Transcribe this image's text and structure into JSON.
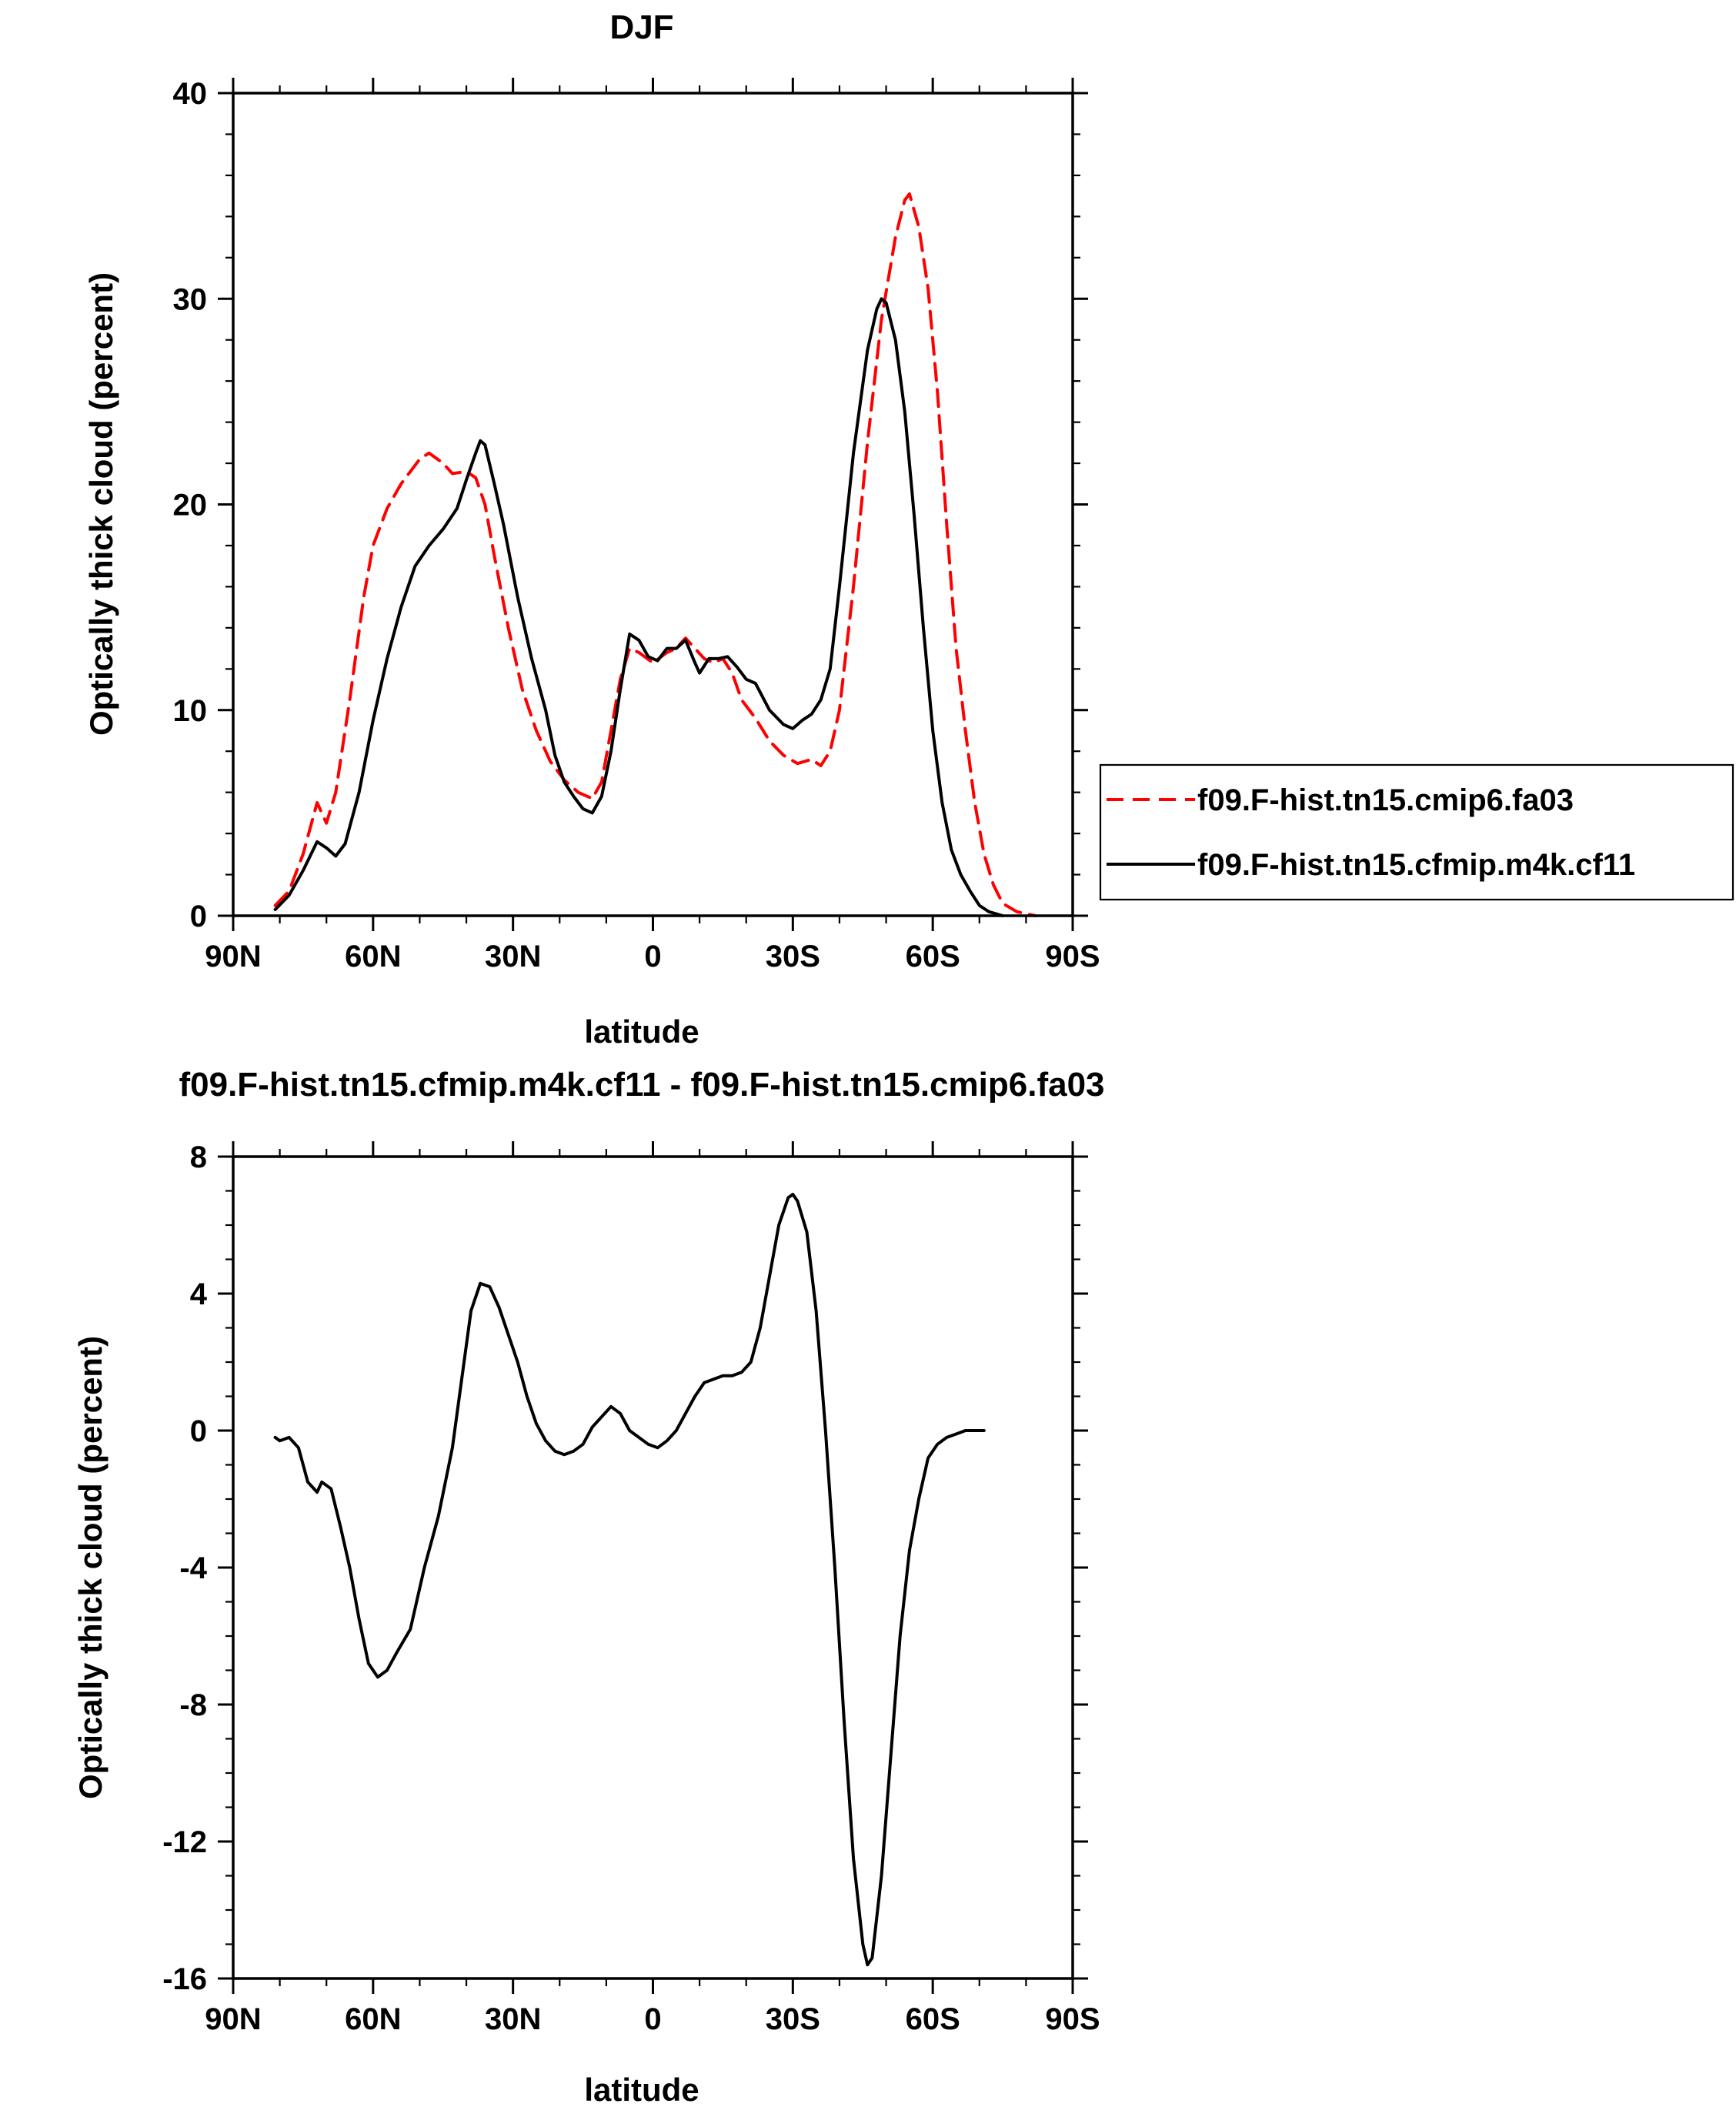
{
  "chart_data": [
    {
      "type": "line",
      "title": "DJF",
      "xlabel": "latitude",
      "ylabel": "Optically thick cloud (percent)",
      "xlim": [
        -90,
        90
      ],
      "ylim": [
        0,
        40
      ],
      "x_tick_values": [
        -90,
        -60,
        -30,
        0,
        30,
        60,
        90
      ],
      "x_tick_labels": [
        "90N",
        "60N",
        "30N",
        "0",
        "30S",
        "60S",
        "90S"
      ],
      "y_tick_values": [
        0,
        10,
        20,
        30,
        40
      ],
      "y_tick_labels": [
        "0",
        "10",
        "20",
        "30",
        "40"
      ],
      "legend_position": "right",
      "series": [
        {
          "name": "f09.F-hist.tn15.cmip6.fa03",
          "color": "#ff0000",
          "style": "dashed",
          "points": [
            [
              -81,
              0.5
            ],
            [
              -78,
              1.2
            ],
            [
              -75,
              3.0
            ],
            [
              -72,
              5.5
            ],
            [
              -70,
              4.5
            ],
            [
              -68,
              6.0
            ],
            [
              -65,
              10.5
            ],
            [
              -62,
              15.5
            ],
            [
              -60,
              18.0
            ],
            [
              -57,
              19.8
            ],
            [
              -54,
              21.0
            ],
            [
              -50,
              22.2
            ],
            [
              -48,
              22.5
            ],
            [
              -45,
              22.0
            ],
            [
              -43,
              21.5
            ],
            [
              -40,
              21.6
            ],
            [
              -38,
              21.3
            ],
            [
              -36,
              20.0
            ],
            [
              -34,
              17.5
            ],
            [
              -31,
              14.0
            ],
            [
              -28,
              11.0
            ],
            [
              -25,
              9.0
            ],
            [
              -22,
              7.5
            ],
            [
              -19,
              6.6
            ],
            [
              -16,
              6.0
            ],
            [
              -13,
              5.7
            ],
            [
              -11,
              6.5
            ],
            [
              -9,
              9.0
            ],
            [
              -7,
              11.5
            ],
            [
              -5,
              13.0
            ],
            [
              -3,
              12.8
            ],
            [
              0,
              12.3
            ],
            [
              3,
              12.8
            ],
            [
              5,
              13.0
            ],
            [
              7,
              13.5
            ],
            [
              9,
              13.0
            ],
            [
              11,
              12.5
            ],
            [
              13,
              12.3
            ],
            [
              15,
              12.5
            ],
            [
              17,
              11.8
            ],
            [
              19,
              10.5
            ],
            [
              22,
              9.6
            ],
            [
              25,
              8.5
            ],
            [
              28,
              7.8
            ],
            [
              31,
              7.4
            ],
            [
              34,
              7.6
            ],
            [
              36,
              7.3
            ],
            [
              38,
              8.0
            ],
            [
              40,
              10.0
            ],
            [
              43,
              16.0
            ],
            [
              46,
              23.0
            ],
            [
              49,
              29.0
            ],
            [
              52,
              33.0
            ],
            [
              54,
              34.8
            ],
            [
              55,
              35.1
            ],
            [
              57,
              33.5
            ],
            [
              59,
              30.5
            ],
            [
              61,
              25.5
            ],
            [
              63,
              19.0
            ],
            [
              65,
              13.0
            ],
            [
              67,
              9.0
            ],
            [
              69,
              5.5
            ],
            [
              71,
              3.0
            ],
            [
              73,
              1.5
            ],
            [
              75,
              0.6
            ],
            [
              78,
              0.2
            ],
            [
              82,
              0.0
            ]
          ]
        },
        {
          "name": "f09.F-hist.tn15.cfmip.m4k.cf11",
          "color": "#000000",
          "style": "solid",
          "points": [
            [
              -81,
              0.3
            ],
            [
              -78,
              1.0
            ],
            [
              -75,
              2.2
            ],
            [
              -72,
              3.6
            ],
            [
              -70,
              3.3
            ],
            [
              -68,
              2.9
            ],
            [
              -66,
              3.5
            ],
            [
              -63,
              6.0
            ],
            [
              -60,
              9.5
            ],
            [
              -57,
              12.5
            ],
            [
              -54,
              15.0
            ],
            [
              -51,
              17.0
            ],
            [
              -48,
              18.0
            ],
            [
              -45,
              18.8
            ],
            [
              -42,
              19.8
            ],
            [
              -40,
              21.2
            ],
            [
              -38,
              22.5
            ],
            [
              -37,
              23.1
            ],
            [
              -36,
              22.9
            ],
            [
              -34,
              21.0
            ],
            [
              -32,
              19.0
            ],
            [
              -29,
              15.5
            ],
            [
              -26,
              12.5
            ],
            [
              -23,
              10.0
            ],
            [
              -21,
              7.8
            ],
            [
              -19,
              6.5
            ],
            [
              -17,
              5.8
            ],
            [
              -15,
              5.2
            ],
            [
              -13,
              5.0
            ],
            [
              -11,
              5.8
            ],
            [
              -9,
              8.0
            ],
            [
              -7,
              11.0
            ],
            [
              -5,
              13.7
            ],
            [
              -3,
              13.4
            ],
            [
              -1,
              12.6
            ],
            [
              1,
              12.4
            ],
            [
              3,
              13.0
            ],
            [
              5,
              13.0
            ],
            [
              7,
              13.4
            ],
            [
              9,
              12.3
            ],
            [
              10,
              11.8
            ],
            [
              12,
              12.5
            ],
            [
              14,
              12.5
            ],
            [
              16,
              12.6
            ],
            [
              18,
              12.1
            ],
            [
              20,
              11.5
            ],
            [
              22,
              11.3
            ],
            [
              25,
              10.0
            ],
            [
              28,
              9.3
            ],
            [
              30,
              9.1
            ],
            [
              32,
              9.5
            ],
            [
              34,
              9.8
            ],
            [
              36,
              10.5
            ],
            [
              38,
              12.0
            ],
            [
              40,
              16.0
            ],
            [
              43,
              22.5
            ],
            [
              46,
              27.5
            ],
            [
              48,
              29.5
            ],
            [
              49,
              30.0
            ],
            [
              50,
              29.8
            ],
            [
              52,
              28.0
            ],
            [
              54,
              24.5
            ],
            [
              56,
              19.5
            ],
            [
              58,
              14.0
            ],
            [
              60,
              9.0
            ],
            [
              62,
              5.5
            ],
            [
              64,
              3.2
            ],
            [
              66,
              2.0
            ],
            [
              68,
              1.2
            ],
            [
              70,
              0.5
            ],
            [
              72,
              0.2
            ],
            [
              75,
              0.0
            ]
          ]
        }
      ]
    },
    {
      "type": "line",
      "title": "f09.F-hist.tn15.cfmip.m4k.cf11 - f09.F-hist.tn15.cmip6.fa03",
      "xlabel": "latitude",
      "ylabel": "Optically thick cloud (percent)",
      "xlim": [
        -90,
        90
      ],
      "ylim": [
        -16,
        8
      ],
      "x_tick_values": [
        -90,
        -60,
        -30,
        0,
        30,
        60,
        90
      ],
      "x_tick_labels": [
        "90N",
        "60N",
        "30N",
        "0",
        "30S",
        "60S",
        "90S"
      ],
      "y_tick_values": [
        -16,
        -12,
        -8,
        -4,
        0,
        4,
        8
      ],
      "y_tick_labels": [
        "-16",
        "-12",
        "-8",
        "-4",
        "0",
        "4",
        "8"
      ],
      "series": [
        {
          "color": "#000000",
          "style": "solid",
          "points": [
            [
              -81,
              -0.2
            ],
            [
              -80,
              -0.3
            ],
            [
              -78,
              -0.2
            ],
            [
              -76,
              -0.5
            ],
            [
              -74,
              -1.5
            ],
            [
              -72,
              -1.8
            ],
            [
              -71,
              -1.5
            ],
            [
              -69,
              -1.7
            ],
            [
              -67,
              -2.8
            ],
            [
              -65,
              -4.0
            ],
            [
              -63,
              -5.5
            ],
            [
              -61,
              -6.8
            ],
            [
              -59,
              -7.2
            ],
            [
              -57,
              -7.0
            ],
            [
              -55,
              -6.5
            ],
            [
              -52,
              -5.8
            ],
            [
              -49,
              -4.0
            ],
            [
              -46,
              -2.5
            ],
            [
              -43,
              -0.5
            ],
            [
              -41,
              1.5
            ],
            [
              -39,
              3.5
            ],
            [
              -37,
              4.3
            ],
            [
              -35,
              4.2
            ],
            [
              -33,
              3.6
            ],
            [
              -31,
              2.8
            ],
            [
              -29,
              2.0
            ],
            [
              -27,
              1.0
            ],
            [
              -25,
              0.2
            ],
            [
              -23,
              -0.3
            ],
            [
              -21,
              -0.6
            ],
            [
              -19,
              -0.7
            ],
            [
              -17,
              -0.6
            ],
            [
              -15,
              -0.4
            ],
            [
              -13,
              0.1
            ],
            [
              -11,
              0.4
            ],
            [
              -9,
              0.7
            ],
            [
              -7,
              0.5
            ],
            [
              -5,
              0.0
            ],
            [
              -3,
              -0.2
            ],
            [
              -1,
              -0.4
            ],
            [
              1,
              -0.5
            ],
            [
              3,
              -0.3
            ],
            [
              5,
              0.0
            ],
            [
              7,
              0.5
            ],
            [
              9,
              1.0
            ],
            [
              11,
              1.4
            ],
            [
              13,
              1.5
            ],
            [
              15,
              1.6
            ],
            [
              17,
              1.6
            ],
            [
              19,
              1.7
            ],
            [
              21,
              2.0
            ],
            [
              23,
              3.0
            ],
            [
              25,
              4.5
            ],
            [
              27,
              6.0
            ],
            [
              29,
              6.8
            ],
            [
              30,
              6.9
            ],
            [
              31,
              6.7
            ],
            [
              33,
              5.8
            ],
            [
              35,
              3.5
            ],
            [
              37,
              0.0
            ],
            [
              39,
              -4.0
            ],
            [
              41,
              -8.5
            ],
            [
              43,
              -12.5
            ],
            [
              45,
              -15.0
            ],
            [
              46,
              -15.6
            ],
            [
              47,
              -15.4
            ],
            [
              49,
              -13.0
            ],
            [
              51,
              -9.5
            ],
            [
              53,
              -6.0
            ],
            [
              55,
              -3.5
            ],
            [
              57,
              -2.0
            ],
            [
              59,
              -0.8
            ],
            [
              61,
              -0.4
            ],
            [
              63,
              -0.2
            ],
            [
              65,
              -0.1
            ],
            [
              67,
              0.0
            ],
            [
              71,
              0.0
            ]
          ]
        }
      ]
    }
  ]
}
